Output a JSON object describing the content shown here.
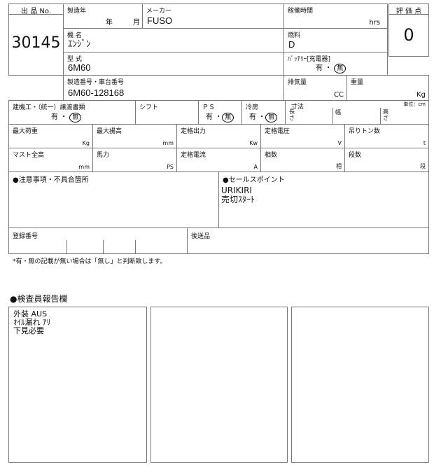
{
  "lot": {
    "label": "出 品 No.",
    "value": "30145"
  },
  "rating": {
    "label": "評 価 点",
    "value": "0"
  },
  "manufacture_year": {
    "label": "製造年",
    "year_label": "年",
    "month_label": "月"
  },
  "maker": {
    "label": "メーカー",
    "value": "FUSO"
  },
  "hours": {
    "label": "稼働時間",
    "unit": "hrs"
  },
  "machine_name": {
    "label": "機 名",
    "value": "ｴﾝｼﾞﾝ"
  },
  "fuel": {
    "label": "燃料",
    "value": "D"
  },
  "model": {
    "label": "型 式",
    "value": "6M60"
  },
  "battery": {
    "label": "ﾊﾞｯﾃﾘｰ[充電器]",
    "yes": "有 ・",
    "no": "無"
  },
  "serial": {
    "label": "製造番号・車台番号",
    "value": "6M60-128168"
  },
  "displacement": {
    "label": "排気量",
    "unit": "CC"
  },
  "weight": {
    "label": "重量",
    "unit": "Kg"
  },
  "transfer_docs": {
    "label": "建機工・（統一）譲渡書類",
    "yes": "有 ・",
    "no": "無"
  },
  "shift": {
    "label": "シフト"
  },
  "ps": {
    "label": "ＰＳ",
    "yes": "有 ・",
    "no": "無"
  },
  "cooling": {
    "label": "冷房",
    "yes": "有 ・",
    "no": "無"
  },
  "dimensions": {
    "label": "寸法",
    "unit_note": "単位：cm",
    "length": "長\nさ",
    "width": "幅",
    "height": "高\nさ"
  },
  "specs": [
    {
      "label": "最大荷重",
      "unit": "Kg"
    },
    {
      "label": "最大揚高",
      "unit": "mm"
    },
    {
      "label": "定格出力",
      "unit": "Kw"
    },
    {
      "label": "定格電圧",
      "unit": "V"
    },
    {
      "label": "吊りトン数",
      "unit": "t"
    },
    {
      "label": "マスト全高",
      "unit": "mm"
    },
    {
      "label": "馬力",
      "unit": "PS"
    },
    {
      "label": "定格電流",
      "unit": "A"
    },
    {
      "label": "相数",
      "unit": "相"
    },
    {
      "label": "段数",
      "unit": "段"
    }
  ],
  "notes": {
    "label": "●注意事項・不具合箇所"
  },
  "sales_point": {
    "label": "●セールスポイント",
    "text": "URIKIRI\n売切ｽﾀｰﾄ"
  },
  "registration": {
    "label": "登録番号"
  },
  "follow_items": {
    "label": "後送品"
  },
  "footnote": "*有・無の記載が無い場合は「無し」と判断致します。",
  "inspector": {
    "title": "●検査員報告欄",
    "boxes": [
      "外装 AUS\nｵｲﾙ漏れ ｱﾘ\n下見必要",
      "",
      ""
    ]
  }
}
